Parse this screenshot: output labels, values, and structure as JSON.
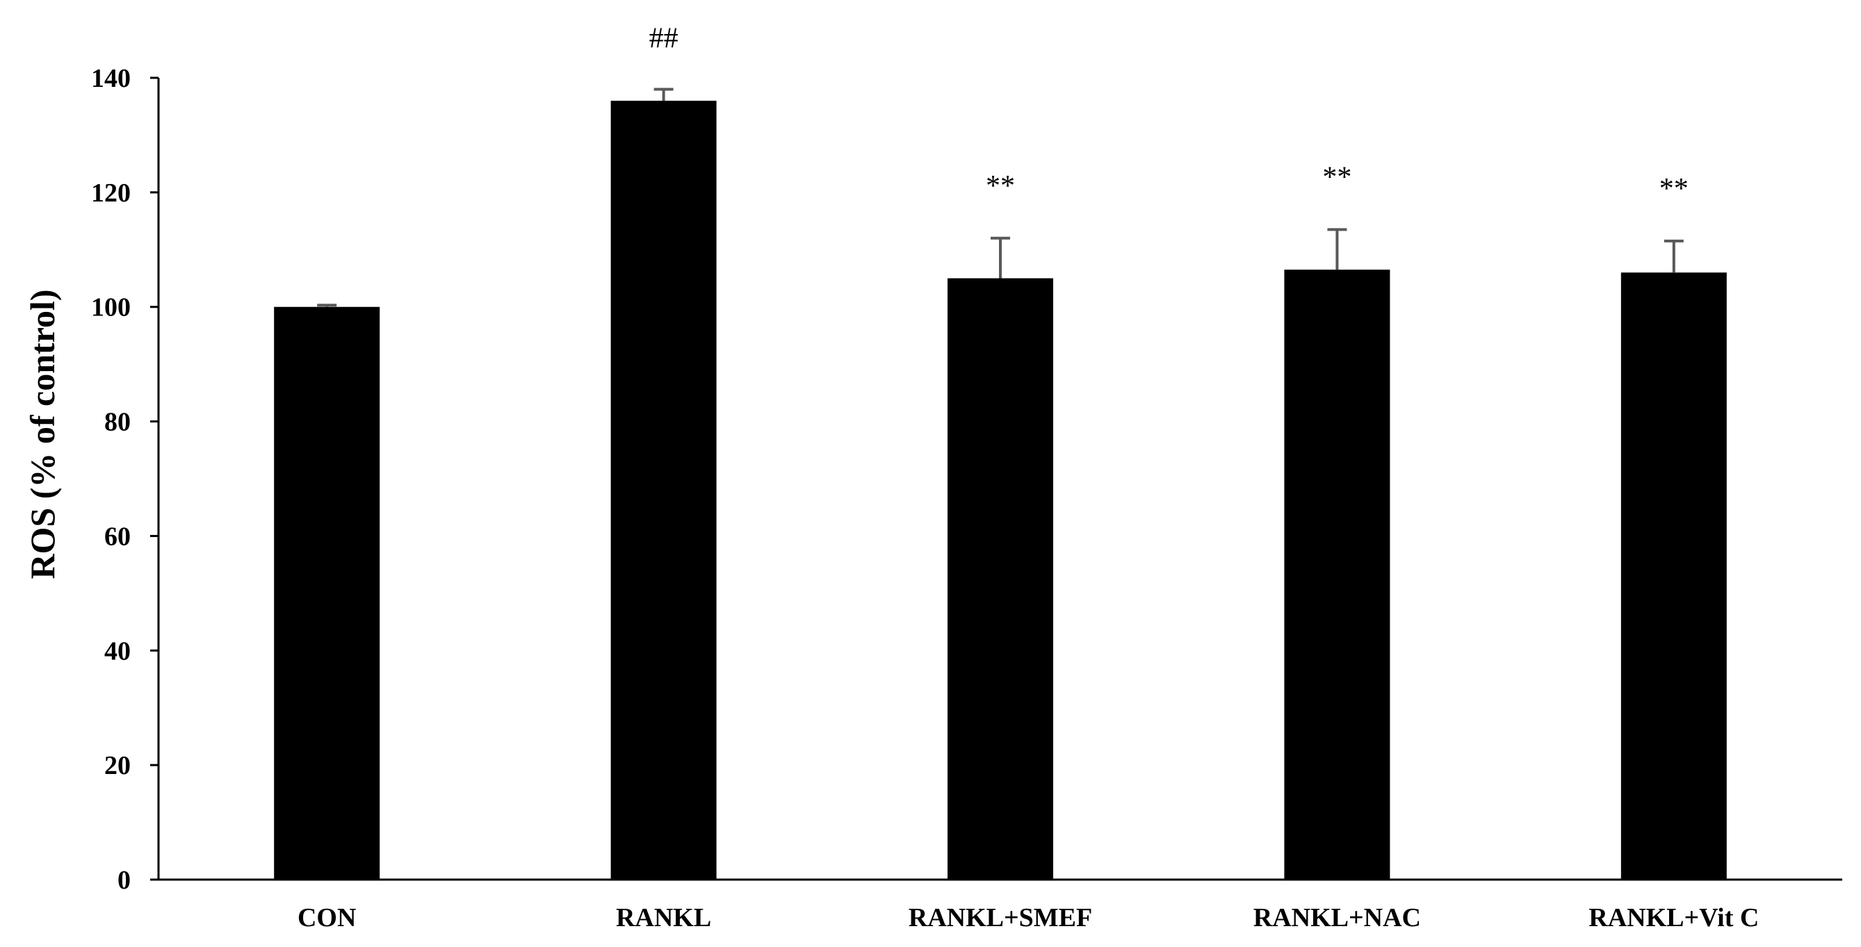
{
  "chart_data": {
    "type": "bar",
    "categories": [
      "CON",
      "RANKL",
      "RANKL+SMEF",
      "RANKL+NAC",
      "RANKL+Vit C"
    ],
    "values": [
      100,
      136,
      105,
      106.5,
      106
    ],
    "errors": [
      0.3,
      2,
      7,
      7,
      5.5
    ],
    "annotations": [
      "",
      "##",
      "**",
      "**",
      "**"
    ],
    "title": "",
    "xlabel": "",
    "ylabel": "ROS (% of control)",
    "ylim": [
      0,
      140
    ],
    "yticks": [
      "0",
      "20",
      "40",
      "60",
      "80",
      "100",
      "120",
      "140"
    ],
    "grid": false,
    "legend": "none",
    "colors": {
      "bar": "#000000",
      "error_bar": "#595959",
      "axis": "#000000"
    }
  }
}
